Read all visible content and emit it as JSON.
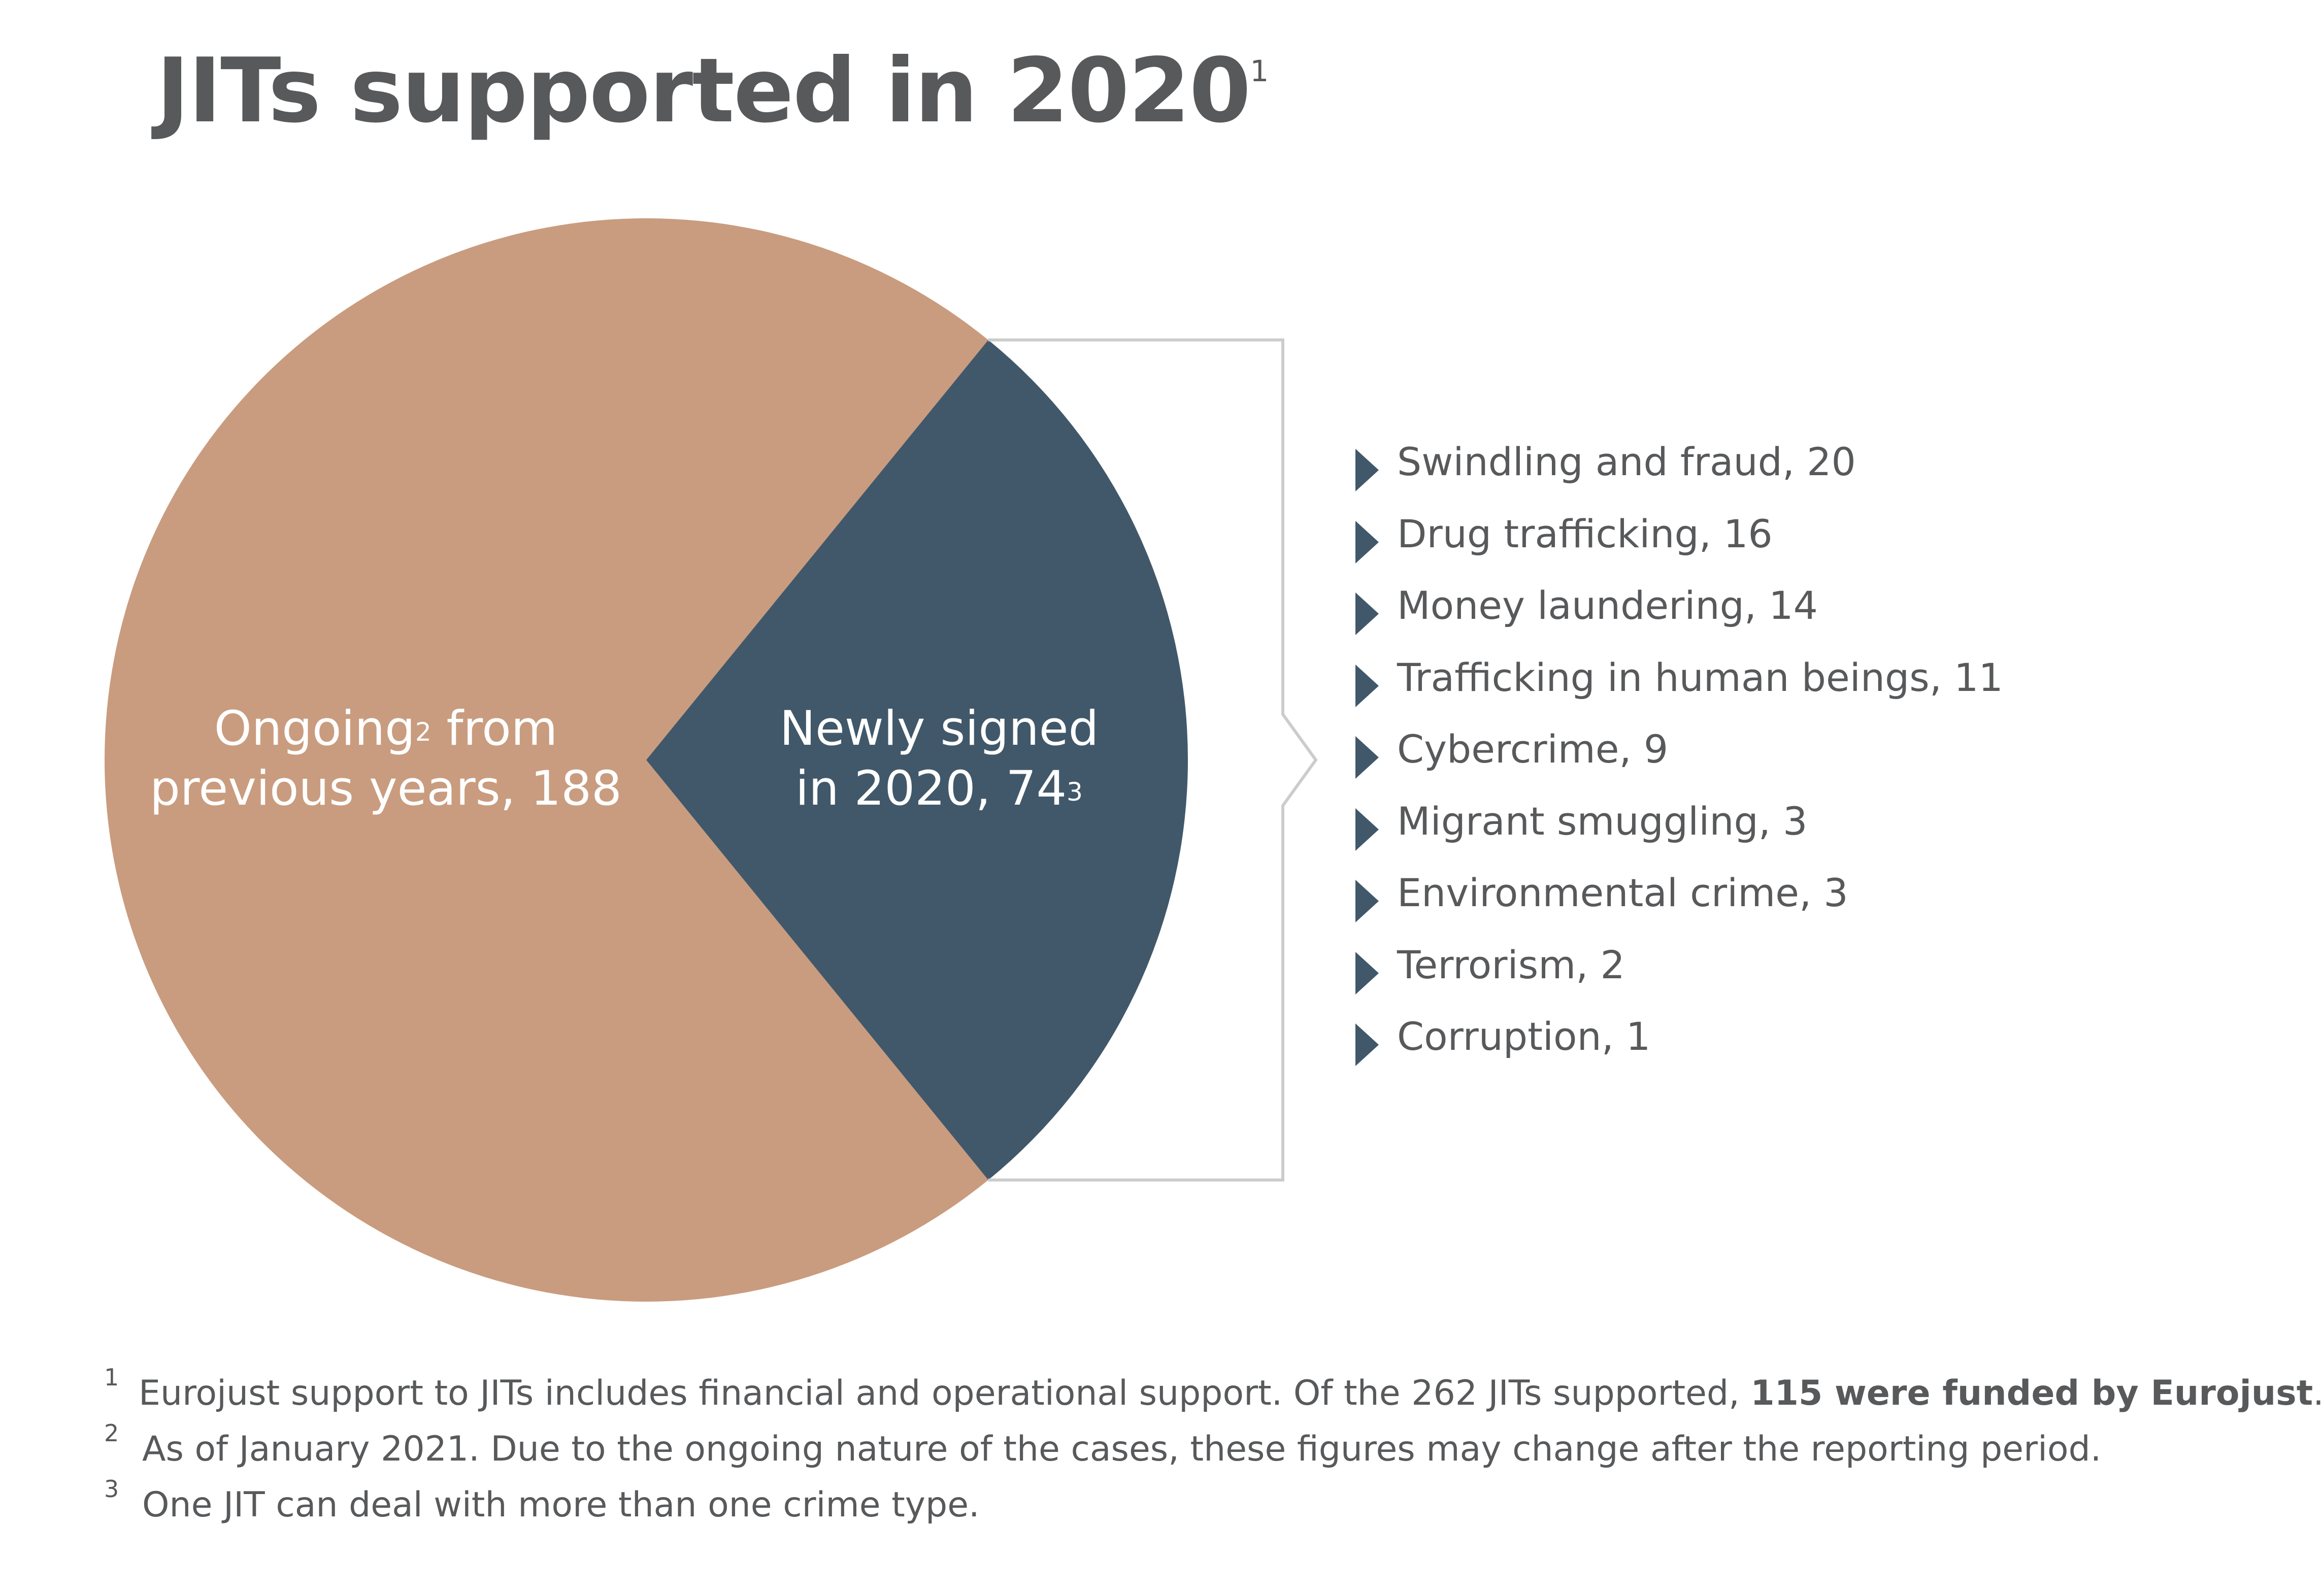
{
  "title": {
    "text": "JITs supported in  2020",
    "sup": "1"
  },
  "chart_data": {
    "type": "pie",
    "title": "JITs supported in  2020",
    "slices": [
      {
        "name": "Ongoing² from previous years",
        "value": 188,
        "color": "#c99c7f"
      },
      {
        "name": "Newly signed in 2020",
        "value": 74,
        "color": "#41586a"
      }
    ],
    "total": 262,
    "breakdown": {
      "of": "Newly signed in 2020",
      "categories": [
        "Swindling and fraud",
        "Drug trafficking",
        "Money laundering",
        "Trafficking in human beings",
        "Cybercrime",
        "Migrant smuggling",
        "Environmental crime",
        "Terrorism",
        "Corruption"
      ],
      "values": [
        20,
        16,
        14,
        11,
        9,
        3,
        3,
        2,
        1
      ]
    }
  },
  "labels": {
    "ongoing": {
      "line1_pre": "Ongoing",
      "line1_sup": "2",
      "line1_post": " from",
      "line2": "previous years, 188"
    },
    "newly": {
      "line1": "Newly signed",
      "line2": "in 2020, 74",
      "sup": "3"
    }
  },
  "list": [
    "Swindling and fraud, 20",
    "Drug trafficking, 16",
    "Money laundering, 14",
    "Trafficking in human beings, 11",
    "Cybercrime, 9",
    "Migrant smuggling, 3",
    "Environmental crime, 3",
    "Terrorism, 2",
    "Corruption, 1"
  ],
  "footnotes": [
    {
      "num": "1",
      "text": "Eurojust support to JITs includes financial and operational support. Of the 262 JITs supported, ",
      "bold": "115 were funded by Eurojust",
      "tail": "."
    },
    {
      "num": "2",
      "text": "As of January 2021. Due to the ongoing nature of the cases, these figures may change after the reporting period."
    },
    {
      "num": "3",
      "text": "One JIT can deal with more than one crime type."
    }
  ],
  "colors": {
    "ongoing": "#c99c7f",
    "newly": "#41586a",
    "bracket": "#cccccc",
    "text": "#58595b"
  }
}
